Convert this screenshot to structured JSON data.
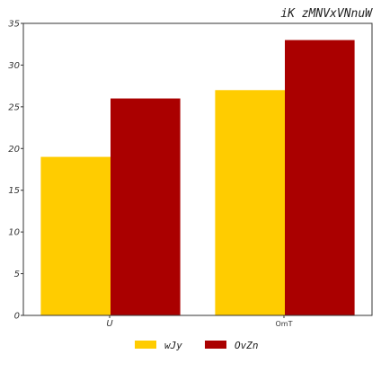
{
  "chart_data": {
    "type": "bar",
    "title": "iK zMNVxVNnuW",
    "categories": [
      "U",
      "OmT"
    ],
    "series": [
      {
        "name": "wJy",
        "values": [
          19,
          27
        ],
        "color": "#FFCC00"
      },
      {
        "name": "OvZn",
        "values": [
          26,
          33
        ],
        "color": "#AA0000"
      }
    ],
    "ylim": [
      0,
      35
    ],
    "yticks": [
      0,
      5,
      10,
      15,
      20,
      25,
      30,
      35
    ],
    "grid": false,
    "legend_position": "bottom-center"
  }
}
